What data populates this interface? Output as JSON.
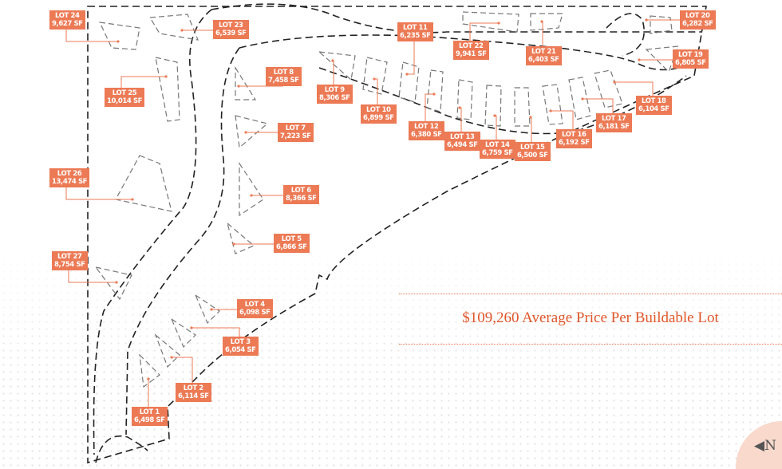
{
  "lots": [
    {
      "name": "LOT 1",
      "area": "6,498 SF"
    },
    {
      "name": "LOT 2",
      "area": "6,114 SF"
    },
    {
      "name": "LOT 3",
      "area": "6,054 SF"
    },
    {
      "name": "LOT 4",
      "area": "6,098 SF"
    },
    {
      "name": "LOT 5",
      "area": "6,866 SF"
    },
    {
      "name": "LOT 6",
      "area": "8,366 SF"
    },
    {
      "name": "LOT 7",
      "area": "7,223 SF"
    },
    {
      "name": "LOT 8",
      "area": "7,458 SF"
    },
    {
      "name": "LOT 9",
      "area": "8,306 SF"
    },
    {
      "name": "LOT 10",
      "area": "6,899 SF"
    },
    {
      "name": "LOT 11",
      "area": "6,235 SF"
    },
    {
      "name": "LOT 12",
      "area": "6,380 SF"
    },
    {
      "name": "LOT 13",
      "area": "6,494 SF"
    },
    {
      "name": "LOT 14",
      "area": "6,759 SF"
    },
    {
      "name": "LOT 15",
      "area": "6,500 SF"
    },
    {
      "name": "LOT 16",
      "area": "6,192 SF"
    },
    {
      "name": "LOT 17",
      "area": "6,181 SF"
    },
    {
      "name": "LOT 18",
      "area": "6,104 SF"
    },
    {
      "name": "LOT 19",
      "area": "6,805 SF"
    },
    {
      "name": "LOT 20",
      "area": "6,282 SF"
    },
    {
      "name": "LOT 21",
      "area": "6,403 SF"
    },
    {
      "name": "LOT 22",
      "area": "9,941 SF"
    },
    {
      "name": "LOT 23",
      "area": "6,539 SF"
    },
    {
      "name": "LOT 24",
      "area": "9,627 SF"
    },
    {
      "name": "LOT 25",
      "area": "10,014 SF"
    },
    {
      "name": "LOT 26",
      "area": "13,474 SF"
    },
    {
      "name": "LOT 27",
      "area": "8,754 SF"
    }
  ],
  "summary": {
    "price_text": "$109,260 Average Price Per Buildable Lot"
  },
  "north_arrow": {
    "label": "N",
    "icon": "north-arrow-icon"
  },
  "colors": {
    "label_bg": "#ec7a55",
    "accent_text": "#e0562a",
    "north_badge": "#f8d9cc",
    "lines": "#222222"
  }
}
